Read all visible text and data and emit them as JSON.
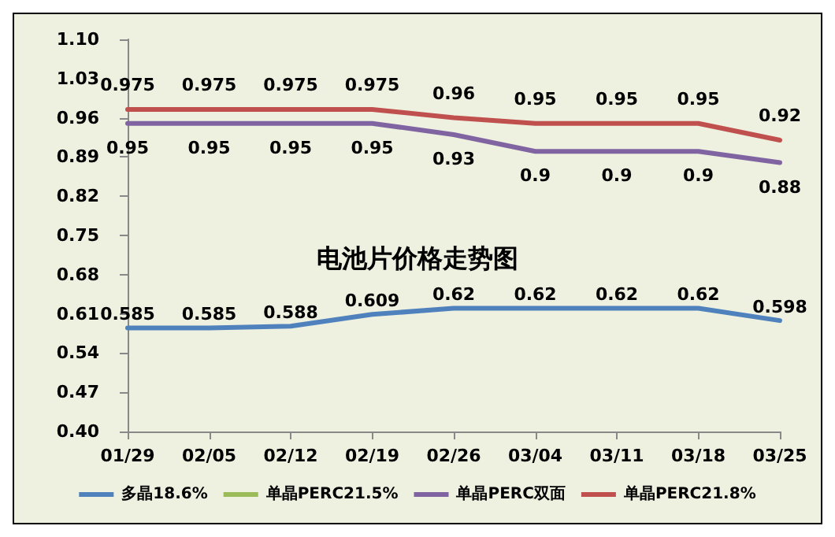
{
  "chart_data": {
    "type": "line",
    "title": "电池片价格走势图",
    "categories": [
      "01/29",
      "02/05",
      "02/12",
      "02/19",
      "02/26",
      "03/04",
      "03/11",
      "03/18",
      "03/25"
    ],
    "series": [
      {
        "name": "多晶18.6%",
        "color": "#4f81bd",
        "values": [
          0.585,
          0.585,
          0.588,
          0.609,
          0.62,
          0.62,
          0.62,
          0.62,
          0.598
        ]
      },
      {
        "name": "单晶PERC21.5%",
        "color": "#9bbb59",
        "values": [
          null,
          null,
          null,
          null,
          null,
          null,
          null,
          null,
          null
        ]
      },
      {
        "name": "单晶PERC双面",
        "color": "#8064a2",
        "values": [
          0.95,
          0.95,
          0.95,
          0.95,
          0.93,
          0.9,
          0.9,
          0.9,
          0.88
        ]
      },
      {
        "name": "单晶PERC21.8%",
        "color": "#c0504d",
        "values": [
          0.975,
          0.975,
          0.975,
          0.975,
          0.96,
          0.95,
          0.95,
          0.95,
          0.92
        ]
      }
    ],
    "ylim": [
      0.4,
      1.1
    ],
    "yticks": [
      {
        "value": 0.4,
        "label": "0.40"
      },
      {
        "value": 0.47,
        "label": "0.47"
      },
      {
        "value": 0.54,
        "label": "0.54"
      },
      {
        "value": 0.61,
        "label": "0.61"
      },
      {
        "value": 0.68,
        "label": "0.68"
      },
      {
        "value": 0.75,
        "label": "0.75"
      },
      {
        "value": 0.82,
        "label": "0.82"
      },
      {
        "value": 0.89,
        "label": "0.89"
      },
      {
        "value": 0.96,
        "label": "0.96"
      },
      {
        "value": 1.03,
        "label": "1.03"
      },
      {
        "value": 1.1,
        "label": "1.10"
      }
    ],
    "grid": false,
    "legend": "bottom",
    "data_labels": true,
    "marker": "none",
    "line_style": "solid"
  }
}
